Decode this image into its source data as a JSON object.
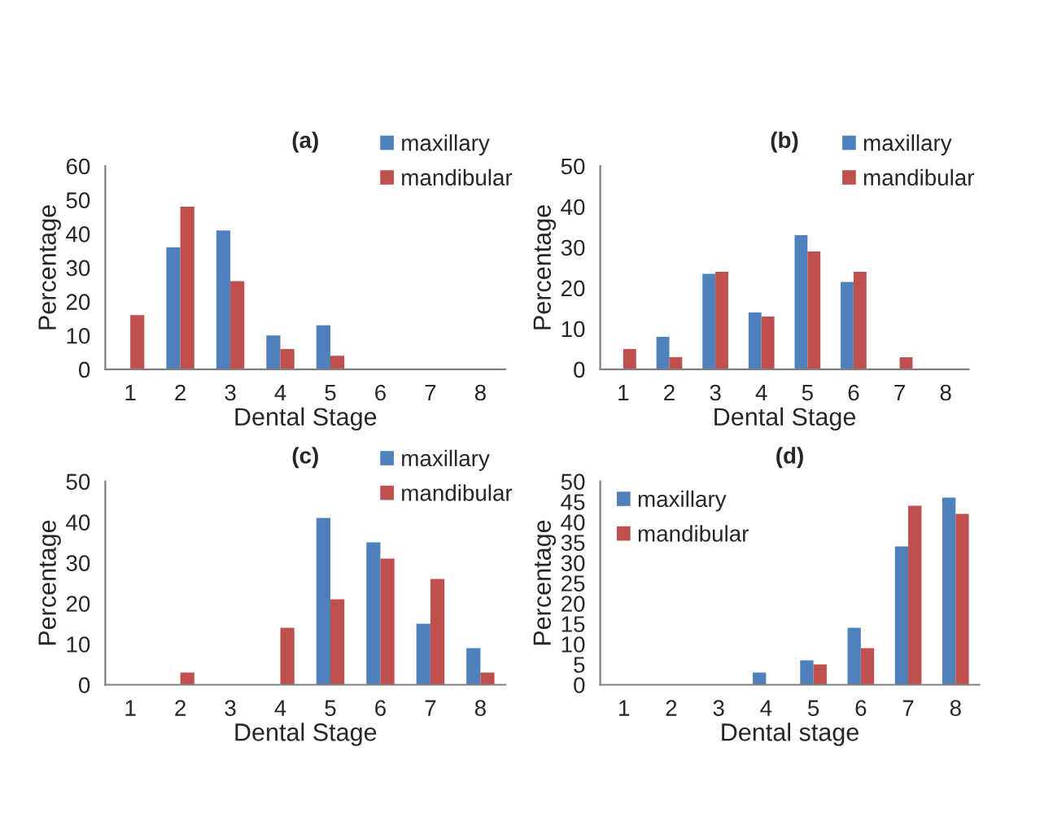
{
  "chart_data": [
    {
      "type": "bar",
      "title": "(a)",
      "xlabel": "Dental Stage",
      "ylabel": "Percentage",
      "categories": [
        "1",
        "2",
        "3",
        "4",
        "5",
        "6",
        "7",
        "8"
      ],
      "ylim": [
        0,
        60
      ],
      "yticks": [
        0,
        10,
        20,
        30,
        40,
        50,
        60
      ],
      "legend": "top right",
      "series": [
        {
          "name": "maxillary",
          "color": "#4f81bd",
          "values": [
            0,
            36,
            41,
            10,
            13,
            0,
            0,
            0
          ]
        },
        {
          "name": "mandibular",
          "color": "#c0504d",
          "values": [
            16,
            48,
            26,
            6,
            4,
            0,
            0,
            0
          ]
        }
      ]
    },
    {
      "type": "bar",
      "title": "(b)",
      "xlabel": "Dental Stage",
      "ylabel": "Percentage",
      "categories": [
        "1",
        "2",
        "3",
        "4",
        "5",
        "6",
        "7",
        "8"
      ],
      "ylim": [
        0,
        50
      ],
      "yticks": [
        0,
        10,
        20,
        30,
        40,
        50
      ],
      "legend": "top right",
      "series": [
        {
          "name": "maxillary",
          "color": "#4f81bd",
          "values": [
            0,
            8,
            23.5,
            14,
            33,
            21.5,
            0,
            0
          ]
        },
        {
          "name": "mandibular",
          "color": "#c0504d",
          "values": [
            5,
            3,
            24,
            13,
            29,
            24,
            3,
            0
          ]
        }
      ]
    },
    {
      "type": "bar",
      "title": "(c)",
      "xlabel": "Dental Stage",
      "ylabel": "Percentage",
      "categories": [
        "1",
        "2",
        "3",
        "4",
        "5",
        "6",
        "7",
        "8"
      ],
      "ylim": [
        0,
        50
      ],
      "yticks": [
        0,
        10,
        20,
        30,
        40,
        50
      ],
      "legend": "top right",
      "series": [
        {
          "name": "maxillary",
          "color": "#4f81bd",
          "values": [
            0,
            0,
            0,
            0,
            41,
            35,
            15,
            9
          ]
        },
        {
          "name": "mandibular",
          "color": "#c0504d",
          "values": [
            0,
            3,
            0,
            14,
            21,
            31,
            26,
            3
          ]
        }
      ]
    },
    {
      "type": "bar",
      "title": "(d)",
      "xlabel": "Dental stage",
      "ylabel": "Percentage",
      "categories": [
        "1",
        "2",
        "3",
        "4",
        "5",
        "6",
        "7",
        "8"
      ],
      "ylim": [
        0,
        50
      ],
      "yticks": [
        0,
        5,
        10,
        15,
        20,
        25,
        30,
        35,
        40,
        45,
        50
      ],
      "legend": "top left",
      "series": [
        {
          "name": "maxillary",
          "color": "#4f81bd",
          "values": [
            0,
            0,
            0,
            3,
            6,
            14,
            34,
            46
          ]
        },
        {
          "name": "mandibular",
          "color": "#c0504d",
          "values": [
            0,
            0,
            0,
            0,
            5,
            9,
            44,
            42
          ]
        }
      ]
    }
  ]
}
